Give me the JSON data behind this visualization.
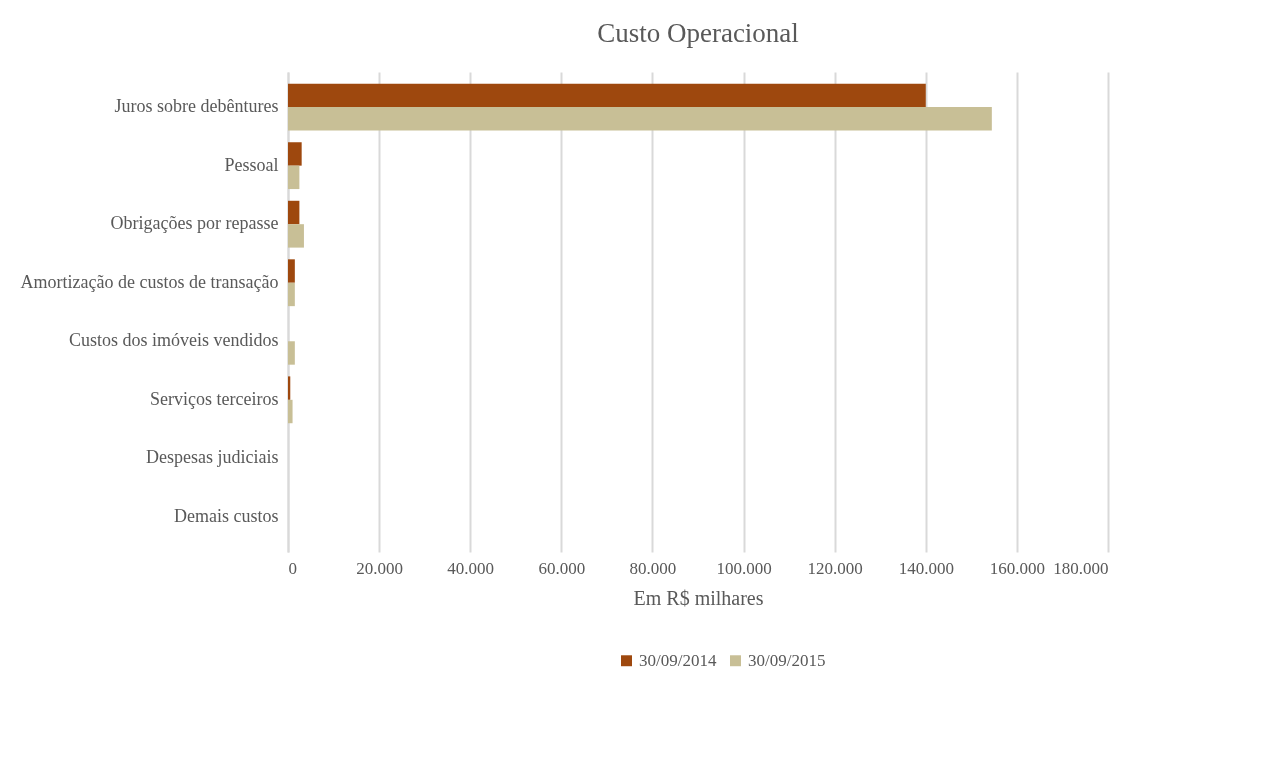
{
  "chart_data": {
    "type": "bar",
    "orientation": "horizontal",
    "title": "Custo Operacional",
    "xlabel": "Em R$ milhares",
    "categories": [
      "Juros sobre debêntures",
      "Pessoal",
      "Obrigações por repasse",
      "Amortização de custos de transação",
      "Custos dos imóveis vendidos",
      "Serviços terceiros",
      "Despesas judiciais",
      "Demais custos"
    ],
    "series": [
      {
        "name": "30/09/2014",
        "color": "#9e480e",
        "values": [
          140000,
          3000,
          2500,
          1500,
          0,
          500,
          0,
          0
        ]
      },
      {
        "name": "30/09/2015",
        "color": "#c8bf96",
        "values": [
          154500,
          2500,
          3500,
          1500,
          1500,
          1000,
          0,
          0
        ]
      }
    ],
    "xlim": [
      0,
      180000
    ],
    "xticks": [
      0,
      {
        "value": 20000,
        "label": "20.000"
      },
      {
        "value": 40000,
        "label": "40.000"
      },
      {
        "value": 60000,
        "label": "60.000"
      },
      {
        "value": 80000,
        "label": "80.000"
      },
      {
        "value": 100000,
        "label": "100.000"
      },
      {
        "value": 120000,
        "label": "120.000"
      },
      {
        "value": 140000,
        "label": "140.000"
      },
      {
        "value": 160000,
        "label": "160.000"
      },
      {
        "value": 180000,
        "label": "180.000"
      }
    ],
    "grid": "x",
    "legend": "bottom"
  }
}
